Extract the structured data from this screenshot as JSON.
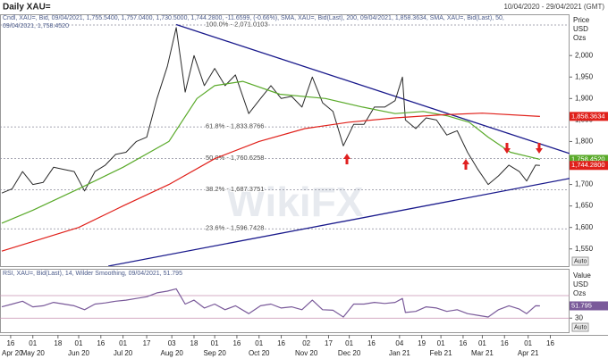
{
  "header": {
    "title": "Daily XAU=",
    "range": "10/04/2020 - 29/04/2021 (GMT)",
    "watermark": "WikiFX"
  },
  "x_axis": {
    "xlim": [
      "2020-04-10",
      "2021-04-29"
    ],
    "xticks": [
      {
        "value": "2020-04-16",
        "label": "16"
      },
      {
        "value": "2020-05-01",
        "label": "01"
      },
      {
        "value": "2020-05-18",
        "label": "18"
      },
      {
        "value": "2020-06-01",
        "label": "01"
      },
      {
        "value": "2020-06-16",
        "label": "16"
      },
      {
        "value": "2020-07-01",
        "label": "01"
      },
      {
        "value": "2020-07-17",
        "label": "17"
      },
      {
        "value": "2020-08-03",
        "label": "03"
      },
      {
        "value": "2020-08-18",
        "label": "18"
      },
      {
        "value": "2020-09-01",
        "label": "01"
      },
      {
        "value": "2020-09-16",
        "label": "16"
      },
      {
        "value": "2020-10-01",
        "label": "01"
      },
      {
        "value": "2020-10-16",
        "label": "16"
      },
      {
        "value": "2020-11-02",
        "label": "02"
      },
      {
        "value": "2020-11-17",
        "label": "17"
      },
      {
        "value": "2020-12-01",
        "label": "01"
      },
      {
        "value": "2020-12-16",
        "label": "16"
      },
      {
        "value": "2021-01-04",
        "label": "04"
      },
      {
        "value": "2021-01-19",
        "label": "19"
      },
      {
        "value": "2021-02-01",
        "label": "01"
      },
      {
        "value": "2021-02-16",
        "label": "16"
      },
      {
        "value": "2021-03-01",
        "label": "01"
      },
      {
        "value": "2021-03-16",
        "label": "16"
      },
      {
        "value": "2021-04-01",
        "label": "01"
      },
      {
        "value": "2021-04-16",
        "label": "16"
      }
    ],
    "months": [
      {
        "value": "2020-04-10",
        "label": "Apr 20"
      },
      {
        "value": "2020-05-01",
        "label": "May 20"
      },
      {
        "value": "2020-06-01",
        "label": "Jun 20"
      },
      {
        "value": "2020-07-01",
        "label": "Jul 20"
      },
      {
        "value": "2020-08-03",
        "label": "Aug 20"
      },
      {
        "value": "2020-09-01",
        "label": "Sep 20"
      },
      {
        "value": "2020-10-01",
        "label": "Oct 20"
      },
      {
        "value": "2020-11-02",
        "label": "Nov 20"
      },
      {
        "value": "2020-12-01",
        "label": "Dec 20"
      },
      {
        "value": "2021-01-04",
        "label": "Jan 21"
      },
      {
        "value": "2021-02-01",
        "label": "Feb 21"
      },
      {
        "value": "2021-03-01",
        "label": "Mar 21"
      },
      {
        "value": "2021-04-01",
        "label": "Apr 21"
      }
    ]
  },
  "chart_data": [
    {
      "type": "line",
      "legend": [
        "Cndl, XAU=, Bid, 09/04/2021, 1,755.5400, 1,757.0400, 1,730.5000, 1,744.2800, -11.6599, (-0.66%), SMA, XAU=, Bid(Last), 200, 09/04/2021, 1,858.3634, SMA, XAU=, Bid(Last), 50,",
        "09/04/2021, 1,758.4520"
      ],
      "axis_label": [
        "Price",
        "USD",
        "Ozs"
      ],
      "auto": "Auto",
      "ylim": [
        1510,
        2096
      ],
      "yticks": [
        {
          "value": 1550,
          "label": "1,550"
        },
        {
          "value": 1600,
          "label": "1,600"
        },
        {
          "value": 1650,
          "label": "1,650"
        },
        {
          "value": 1700,
          "label": "1,700"
        },
        {
          "value": 1750,
          "label": "1,750"
        },
        {
          "value": 1800,
          "label": "1,800"
        },
        {
          "value": 1850,
          "label": "1,850"
        },
        {
          "value": 1900,
          "label": "1,900"
        },
        {
          "value": 1950,
          "label": "1,950"
        },
        {
          "value": 2000,
          "label": "2,000"
        }
      ],
      "series": [
        {
          "color": "#2a2a2a",
          "x": [
            "2020-04-10",
            "2020-04-17",
            "2020-04-24",
            "2020-05-01",
            "2020-05-08",
            "2020-05-15",
            "2020-05-22",
            "2020-05-29",
            "2020-06-05",
            "2020-06-12",
            "2020-06-19",
            "2020-06-26",
            "2020-07-03",
            "2020-07-10",
            "2020-07-17",
            "2020-07-24",
            "2020-07-31",
            "2020-08-06",
            "2020-08-12",
            "2020-08-18",
            "2020-08-25",
            "2020-09-01",
            "2020-09-08",
            "2020-09-15",
            "2020-09-24",
            "2020-10-02",
            "2020-10-09",
            "2020-10-16",
            "2020-10-23",
            "2020-10-30",
            "2020-11-06",
            "2020-11-13",
            "2020-11-20",
            "2020-11-27",
            "2020-12-04",
            "2020-12-11",
            "2020-12-18",
            "2020-12-25",
            "2021-01-01",
            "2021-01-06",
            "2021-01-08",
            "2021-01-15",
            "2021-01-22",
            "2021-01-29",
            "2021-02-05",
            "2021-02-12",
            "2021-02-19",
            "2021-02-26",
            "2021-03-05",
            "2021-03-12",
            "2021-03-19",
            "2021-03-26",
            "2021-03-31",
            "2021-04-06",
            "2021-04-09"
          ],
          "values": [
            1680,
            1690,
            1730,
            1700,
            1705,
            1740,
            1735,
            1730,
            1685,
            1730,
            1745,
            1770,
            1775,
            1800,
            1810,
            1900,
            1975,
            2065,
            1915,
            2000,
            1930,
            1970,
            1930,
            1955,
            1865,
            1900,
            1930,
            1900,
            1905,
            1880,
            1950,
            1890,
            1870,
            1790,
            1840,
            1840,
            1880,
            1880,
            1895,
            1950,
            1850,
            1830,
            1855,
            1850,
            1815,
            1825,
            1775,
            1735,
            1700,
            1720,
            1745,
            1730,
            1708,
            1745,
            1744.28
          ]
        },
        {
          "color": "#5aaa2a",
          "x": [
            "2020-04-10",
            "2020-05-01",
            "2020-06-01",
            "2020-07-01",
            "2020-08-01",
            "2020-08-20",
            "2020-09-01",
            "2020-09-20",
            "2020-10-15",
            "2020-11-15",
            "2020-12-10",
            "2021-01-01",
            "2021-01-20",
            "2021-02-05",
            "2021-02-20",
            "2021-03-05",
            "2021-03-20",
            "2021-04-09"
          ],
          "values": [
            1610,
            1640,
            1690,
            1740,
            1800,
            1900,
            1930,
            1940,
            1910,
            1900,
            1880,
            1865,
            1870,
            1860,
            1845,
            1810,
            1775,
            1758.452
          ]
        },
        {
          "color": "#e0201a",
          "x": [
            "2020-04-10",
            "2020-06-01",
            "2020-07-01",
            "2020-08-01",
            "2020-09-01",
            "2020-10-01",
            "2020-11-01",
            "2020-12-01",
            "2021-01-01",
            "2021-02-01",
            "2021-03-01",
            "2021-04-09"
          ],
          "values": [
            1545,
            1600,
            1650,
            1700,
            1760,
            1800,
            1830,
            1845,
            1855,
            1862,
            1866,
            1858.3634
          ]
        }
      ],
      "trendlines": [
        {
          "color": "#1a1a8c",
          "x": [
            "2020-08-06",
            "2021-04-29"
          ],
          "values": [
            2072,
            1772
          ]
        },
        {
          "color": "#1a1a8c",
          "x": [
            "2020-06-21",
            "2021-04-29"
          ],
          "values": [
            1510,
            1714
          ]
        }
      ],
      "fib_levels": [
        {
          "value": 2071.0103,
          "label": "100.0% - 2,071.0103"
        },
        {
          "value": 1833.8766,
          "label": "61.8% - 1,833.8766"
        },
        {
          "value": 1760.6258,
          "label": "50.0% - 1,760.6258"
        },
        {
          "value": 1687.3751,
          "label": "38.2% - 1,687.3751"
        },
        {
          "value": 1596.7428,
          "label": "23.6% - 1,596.7428"
        }
      ],
      "price_tags": [
        {
          "value": 1858.3634,
          "label": "1,858.3634",
          "color": "#e0201a"
        },
        {
          "value": 1758.452,
          "label": "1,758.4520",
          "color": "#5aaa2a"
        },
        {
          "value": 1744.28,
          "label": "1,744.2800",
          "color": "#e0201a"
        }
      ]
    },
    {
      "type": "line",
      "legend": [
        "RSI, XAU=, Bid(Last), 14, Wilder Smoothing, 09/04/2021, 51.795"
      ],
      "axis_label": [
        "Value",
        "USD",
        "Ozs"
      ],
      "auto": "Auto",
      "ylim": [
        5,
        116
      ],
      "yticks": [
        30
      ],
      "levels": [
        70,
        30
      ],
      "series": [
        {
          "color": "#7a5a9a",
          "x": [
            "2020-04-10",
            "2020-04-17",
            "2020-04-24",
            "2020-05-01",
            "2020-05-08",
            "2020-05-15",
            "2020-05-22",
            "2020-05-29",
            "2020-06-05",
            "2020-06-12",
            "2020-06-19",
            "2020-06-26",
            "2020-07-03",
            "2020-07-10",
            "2020-07-17",
            "2020-07-24",
            "2020-07-31",
            "2020-08-06",
            "2020-08-12",
            "2020-08-18",
            "2020-08-25",
            "2020-09-01",
            "2020-09-08",
            "2020-09-15",
            "2020-09-24",
            "2020-10-02",
            "2020-10-09",
            "2020-10-16",
            "2020-10-23",
            "2020-10-30",
            "2020-11-06",
            "2020-11-13",
            "2020-11-20",
            "2020-11-27",
            "2020-12-04",
            "2020-12-11",
            "2020-12-18",
            "2020-12-25",
            "2021-01-01",
            "2021-01-06",
            "2021-01-08",
            "2021-01-15",
            "2021-01-22",
            "2021-01-29",
            "2021-02-05",
            "2021-02-12",
            "2021-02-19",
            "2021-02-26",
            "2021-03-05",
            "2021-03-12",
            "2021-03-19",
            "2021-03-26",
            "2021-03-31",
            "2021-04-06",
            "2021-04-09"
          ],
          "values": [
            50,
            55,
            60,
            50,
            52,
            58,
            55,
            52,
            45,
            55,
            57,
            60,
            62,
            65,
            68,
            75,
            78,
            82,
            55,
            62,
            48,
            55,
            45,
            52,
            38,
            52,
            55,
            48,
            50,
            45,
            62,
            45,
            44,
            32,
            55,
            55,
            58,
            56,
            58,
            65,
            40,
            42,
            50,
            48,
            42,
            45,
            38,
            35,
            32,
            45,
            52,
            46,
            38,
            52,
            51.795
          ]
        }
      ],
      "price_tags": [
        {
          "value": 51.795,
          "label": "51.795",
          "color": "#7a5a9a"
        }
      ]
    }
  ]
}
